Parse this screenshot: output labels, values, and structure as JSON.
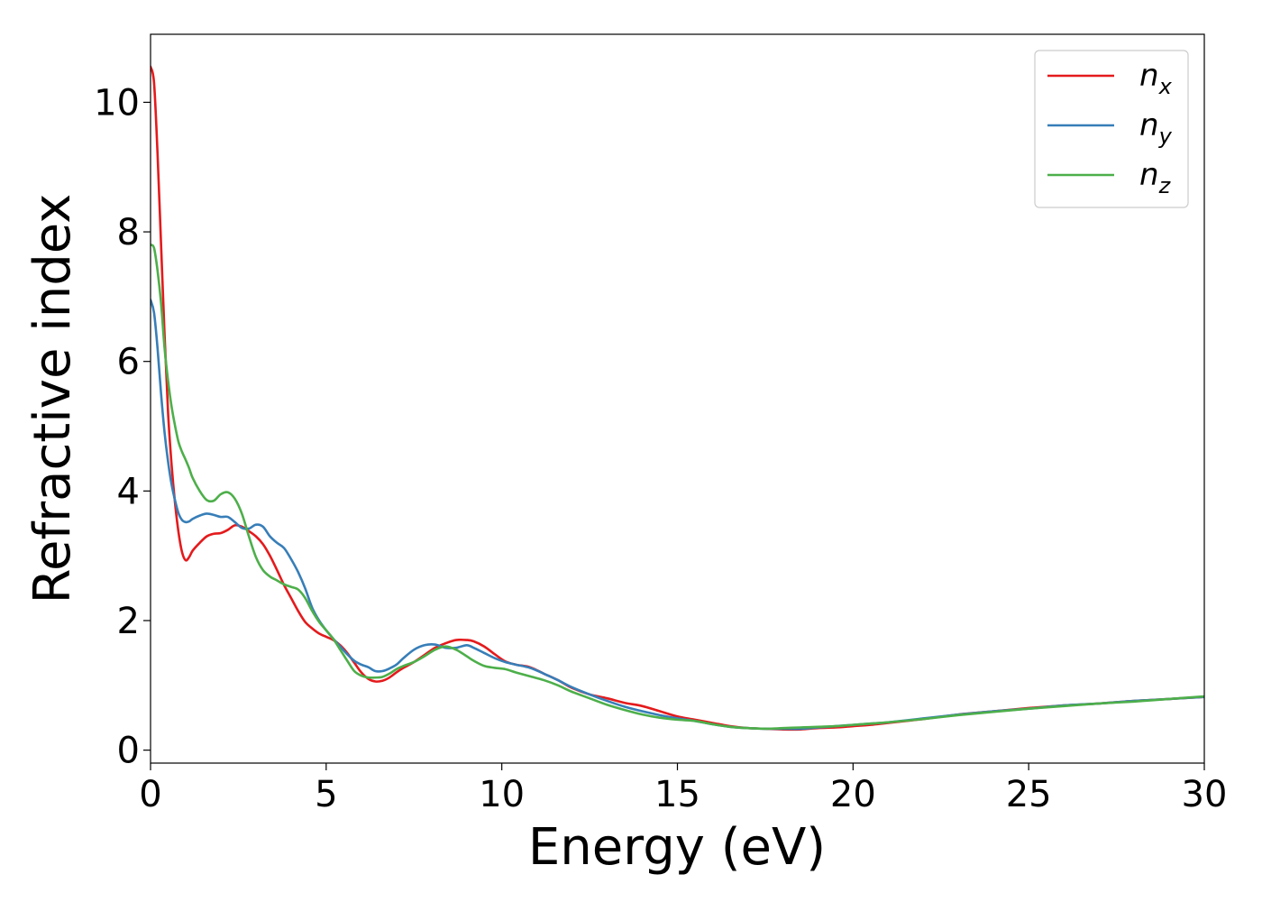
{
  "chart_data": {
    "type": "line",
    "xlabel": "Energy (eV)",
    "ylabel": "Refractive index",
    "xlim": [
      0,
      30
    ],
    "ylim": [
      -0.2,
      11.05
    ],
    "xticks": [
      0,
      5,
      10,
      15,
      20,
      25,
      30
    ],
    "yticks": [
      0,
      2,
      4,
      6,
      8,
      10
    ],
    "grid": false,
    "legend_position": "top-right",
    "series": [
      {
        "name": "n",
        "subscript": "x",
        "color": "#e41a1c",
        "x": [
          0,
          0.1,
          0.2,
          0.3,
          0.4,
          0.5,
          0.6,
          0.7,
          0.8,
          0.9,
          1.0,
          1.1,
          1.2,
          1.4,
          1.6,
          1.8,
          2.0,
          2.2,
          2.4,
          2.6,
          2.8,
          3.0,
          3.2,
          3.4,
          3.6,
          3.8,
          4.0,
          4.2,
          4.4,
          4.6,
          4.8,
          5.0,
          5.2,
          5.4,
          5.6,
          5.8,
          6.0,
          6.2,
          6.4,
          6.6,
          6.8,
          7.0,
          7.2,
          7.5,
          7.8,
          8.1,
          8.4,
          8.7,
          9.0,
          9.2,
          9.5,
          9.8,
          10.1,
          10.4,
          10.8,
          11.2,
          11.6,
          12.0,
          12.5,
          13.0,
          13.5,
          14.0,
          14.5,
          15.0,
          15.5,
          16.0,
          16.5,
          17.0,
          17.5,
          18.0,
          18.5,
          19.0,
          19.5,
          20.0,
          20.5,
          21.0,
          22.0,
          23.0,
          24.0,
          25.0,
          26.0,
          27.0,
          28.0,
          29.0,
          30.0
        ],
        "y": [
          10.55,
          10.3,
          9.2,
          7.8,
          6.4,
          5.2,
          4.4,
          3.8,
          3.35,
          3.05,
          2.93,
          2.98,
          3.08,
          3.2,
          3.3,
          3.34,
          3.35,
          3.4,
          3.47,
          3.45,
          3.38,
          3.3,
          3.18,
          3.0,
          2.78,
          2.55,
          2.35,
          2.15,
          1.98,
          1.88,
          1.8,
          1.75,
          1.7,
          1.62,
          1.5,
          1.35,
          1.2,
          1.1,
          1.06,
          1.07,
          1.12,
          1.2,
          1.27,
          1.36,
          1.47,
          1.58,
          1.65,
          1.7,
          1.7,
          1.68,
          1.6,
          1.48,
          1.37,
          1.32,
          1.28,
          1.18,
          1.08,
          0.96,
          0.86,
          0.8,
          0.73,
          0.68,
          0.6,
          0.52,
          0.47,
          0.42,
          0.37,
          0.34,
          0.33,
          0.32,
          0.32,
          0.34,
          0.35,
          0.37,
          0.39,
          0.42,
          0.48,
          0.55,
          0.6,
          0.65,
          0.69,
          0.72,
          0.76,
          0.79,
          0.82
        ]
      },
      {
        "name": "n",
        "subscript": "y",
        "color": "#377eb8",
        "x": [
          0,
          0.1,
          0.2,
          0.3,
          0.4,
          0.5,
          0.6,
          0.7,
          0.8,
          0.9,
          1.0,
          1.1,
          1.2,
          1.4,
          1.6,
          1.8,
          2.0,
          2.2,
          2.4,
          2.6,
          2.8,
          3.0,
          3.2,
          3.4,
          3.6,
          3.8,
          4.0,
          4.2,
          4.4,
          4.6,
          4.8,
          5.0,
          5.2,
          5.4,
          5.6,
          5.8,
          6.0,
          6.2,
          6.4,
          6.6,
          6.8,
          7.0,
          7.2,
          7.5,
          7.8,
          8.1,
          8.4,
          8.7,
          9.0,
          9.2,
          9.5,
          9.8,
          10.1,
          10.4,
          10.8,
          11.2,
          11.6,
          12.0,
          12.5,
          13.0,
          13.5,
          14.0,
          14.5,
          15.0,
          15.5,
          16.0,
          16.5,
          17.0,
          17.5,
          18.0,
          18.5,
          19.0,
          19.5,
          20.0,
          20.5,
          21.0,
          22.0,
          23.0,
          24.0,
          25.0,
          26.0,
          27.0,
          28.0,
          29.0,
          30.0
        ],
        "y": [
          6.95,
          6.75,
          6.2,
          5.5,
          4.9,
          4.45,
          4.1,
          3.85,
          3.65,
          3.55,
          3.52,
          3.53,
          3.57,
          3.62,
          3.65,
          3.63,
          3.6,
          3.6,
          3.52,
          3.43,
          3.42,
          3.48,
          3.45,
          3.3,
          3.2,
          3.12,
          2.95,
          2.75,
          2.5,
          2.2,
          2.0,
          1.85,
          1.72,
          1.6,
          1.48,
          1.38,
          1.32,
          1.28,
          1.22,
          1.22,
          1.26,
          1.32,
          1.42,
          1.55,
          1.62,
          1.63,
          1.58,
          1.58,
          1.62,
          1.58,
          1.5,
          1.42,
          1.36,
          1.32,
          1.27,
          1.18,
          1.08,
          0.97,
          0.86,
          0.76,
          0.67,
          0.6,
          0.54,
          0.49,
          0.45,
          0.4,
          0.36,
          0.34,
          0.33,
          0.33,
          0.33,
          0.35,
          0.37,
          0.39,
          0.41,
          0.43,
          0.49,
          0.55,
          0.6,
          0.64,
          0.69,
          0.72,
          0.76,
          0.79,
          0.82
        ]
      },
      {
        "name": "n",
        "subscript": "z",
        "color": "#4daf4a",
        "x": [
          0,
          0.1,
          0.2,
          0.3,
          0.4,
          0.5,
          0.6,
          0.7,
          0.8,
          0.9,
          1.0,
          1.1,
          1.2,
          1.4,
          1.6,
          1.8,
          2.0,
          2.2,
          2.4,
          2.6,
          2.8,
          3.0,
          3.2,
          3.4,
          3.6,
          3.8,
          4.0,
          4.2,
          4.4,
          4.6,
          4.8,
          5.0,
          5.2,
          5.4,
          5.6,
          5.8,
          6.0,
          6.2,
          6.4,
          6.6,
          6.8,
          7.0,
          7.2,
          7.5,
          7.8,
          8.1,
          8.4,
          8.7,
          9.0,
          9.2,
          9.5,
          9.8,
          10.1,
          10.4,
          10.8,
          11.2,
          11.6,
          12.0,
          12.5,
          13.0,
          13.5,
          14.0,
          14.5,
          15.0,
          15.5,
          16.0,
          16.5,
          17.0,
          17.5,
          18.0,
          18.5,
          19.0,
          19.5,
          20.0,
          20.5,
          21.0,
          22.0,
          23.0,
          24.0,
          25.0,
          26.0,
          27.0,
          28.0,
          29.0,
          30.0
        ],
        "y": [
          7.8,
          7.75,
          7.4,
          6.9,
          6.2,
          5.7,
          5.3,
          5.0,
          4.75,
          4.6,
          4.48,
          4.35,
          4.2,
          4.0,
          3.86,
          3.85,
          3.95,
          3.98,
          3.88,
          3.65,
          3.3,
          2.98,
          2.78,
          2.68,
          2.62,
          2.56,
          2.52,
          2.48,
          2.35,
          2.15,
          1.98,
          1.85,
          1.72,
          1.55,
          1.38,
          1.22,
          1.15,
          1.12,
          1.12,
          1.13,
          1.18,
          1.25,
          1.3,
          1.36,
          1.45,
          1.55,
          1.6,
          1.55,
          1.45,
          1.38,
          1.3,
          1.27,
          1.25,
          1.2,
          1.14,
          1.08,
          1.0,
          0.9,
          0.8,
          0.7,
          0.62,
          0.55,
          0.5,
          0.47,
          0.45,
          0.4,
          0.36,
          0.34,
          0.33,
          0.34,
          0.35,
          0.36,
          0.37,
          0.39,
          0.41,
          0.43,
          0.48,
          0.54,
          0.59,
          0.64,
          0.68,
          0.72,
          0.75,
          0.79,
          0.83
        ]
      }
    ]
  }
}
